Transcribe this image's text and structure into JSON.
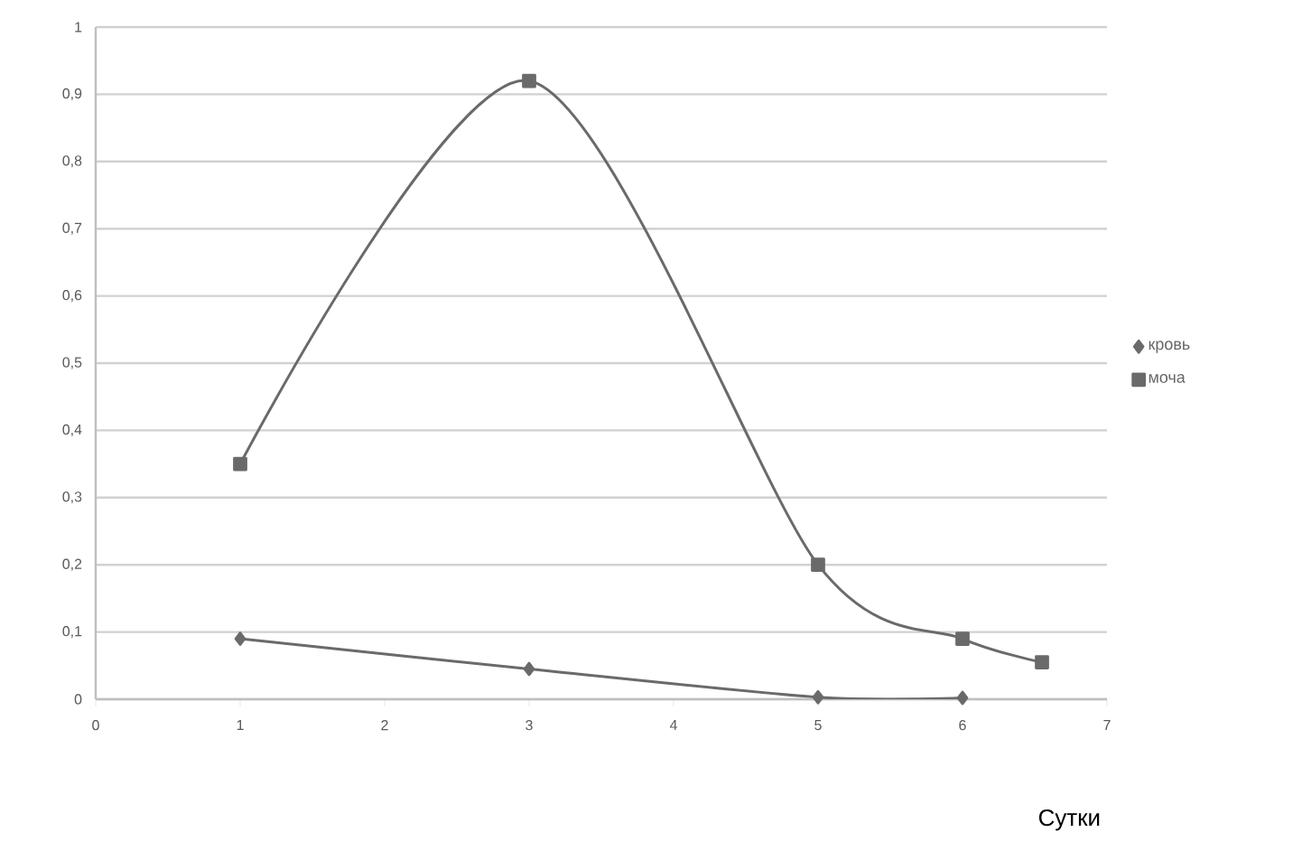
{
  "chart_data": {
    "type": "line",
    "xlabel": "Сутки",
    "x": [
      1,
      3,
      5,
      6
    ],
    "series": [
      {
        "name": "кровь",
        "color": "#6a6a6a",
        "marker": "diamond",
        "values": [
          0.09,
          0.045,
          0.003,
          0.002
        ]
      },
      {
        "name": "моча",
        "color": "#6a6a6a",
        "marker": "square",
        "x": [
          1,
          3,
          5,
          6,
          6.55
        ],
        "values": [
          0.35,
          0.92,
          0.2,
          0.09,
          0.055
        ]
      }
    ],
    "xlim": [
      0,
      7
    ],
    "xticks": [
      0,
      1,
      2,
      3,
      4,
      5,
      6,
      7
    ],
    "ylim": [
      0,
      1
    ],
    "yticks": [
      0,
      {
        "value": 0.1,
        "label": "0,1"
      },
      {
        "value": 0.2,
        "label": "0,2"
      },
      {
        "value": 0.3,
        "label": "0,3"
      },
      {
        "value": 0.4,
        "label": "0,4"
      },
      {
        "value": 0.5,
        "label": "0,5"
      },
      {
        "value": 0.6,
        "label": "0,6"
      },
      {
        "value": 0.7,
        "label": "0,7"
      },
      {
        "value": 0.8,
        "label": "0,8"
      },
      {
        "value": 0.9,
        "label": "0,9"
      },
      1
    ],
    "grid": "y",
    "legend": "right",
    "line_style": "solid"
  }
}
